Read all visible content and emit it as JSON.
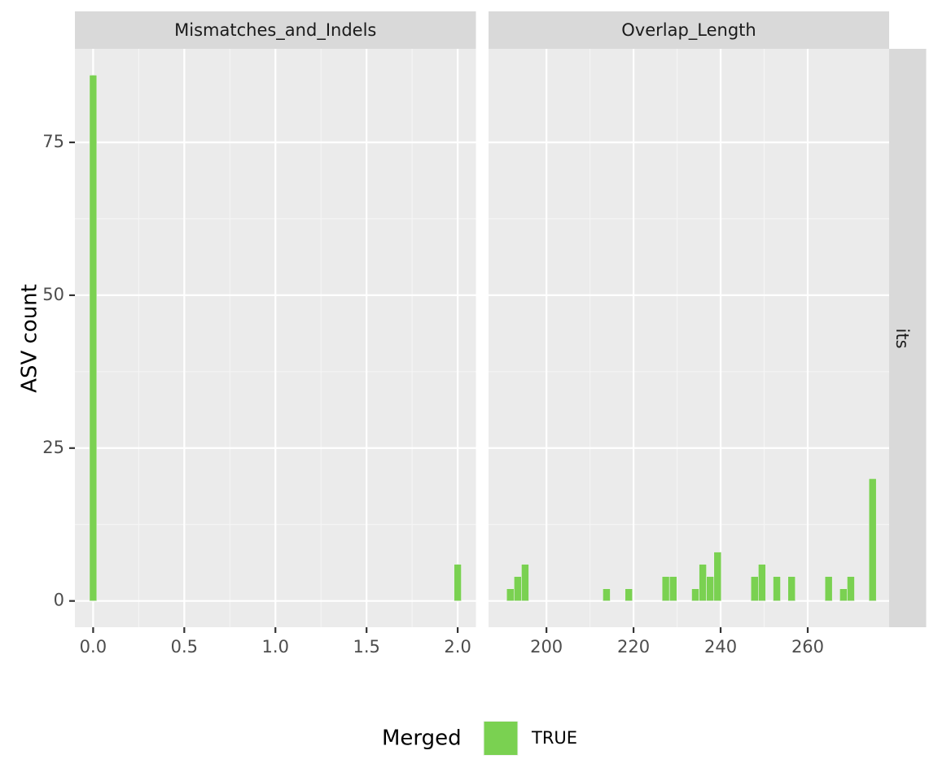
{
  "chart_data": {
    "type": "bar",
    "ylabel": "ASV count",
    "xlabel": "",
    "facet_row_label": "its",
    "y_ticks": [
      0,
      25,
      50,
      75
    ],
    "ylim": [
      -4.3,
      90.3
    ],
    "bar_color": "#7AD151",
    "legend": {
      "title": "Merged",
      "placement": "bottom",
      "entries": [
        {
          "label": "TRUE",
          "color": "#7AD151"
        }
      ]
    },
    "panels": [
      {
        "name": "Mismatches_and_Indels",
        "xlim": [
          -0.1,
          2.1
        ],
        "x_ticks": [
          0,
          0.5,
          1,
          1.5,
          2
        ],
        "x_tick_labels": [
          "0.0",
          "0.5",
          "1.0",
          "1.5",
          "2.0"
        ],
        "bin_width": 0.04,
        "bars": [
          {
            "x": 0,
            "count": 86
          },
          {
            "x": 2,
            "count": 6
          }
        ]
      },
      {
        "name": "Overlap_Length",
        "x_ticks": [
          200,
          220,
          240,
          260
        ],
        "x_tick_labels": [
          "200",
          "220",
          "240",
          "260"
        ],
        "xlim": [
          186.7,
          278.7
        ],
        "bin_width": 1.7,
        "bars": [
          {
            "x": 191.7,
            "count": 2
          },
          {
            "x": 193.4,
            "count": 4
          },
          {
            "x": 195.1,
            "count": 6
          },
          {
            "x": 213.8,
            "count": 2
          },
          {
            "x": 218.9,
            "count": 2
          },
          {
            "x": 227.4,
            "count": 4
          },
          {
            "x": 229.1,
            "count": 4
          },
          {
            "x": 234.2,
            "count": 2
          },
          {
            "x": 235.9,
            "count": 6
          },
          {
            "x": 237.6,
            "count": 4
          },
          {
            "x": 239.3,
            "count": 8
          },
          {
            "x": 247.8,
            "count": 4
          },
          {
            "x": 249.5,
            "count": 6
          },
          {
            "x": 252.9,
            "count": 4
          },
          {
            "x": 256.3,
            "count": 4
          },
          {
            "x": 264.8,
            "count": 4
          },
          {
            "x": 268.2,
            "count": 2
          },
          {
            "x": 269.9,
            "count": 4
          },
          {
            "x": 274.9,
            "count": 20
          }
        ]
      }
    ]
  }
}
